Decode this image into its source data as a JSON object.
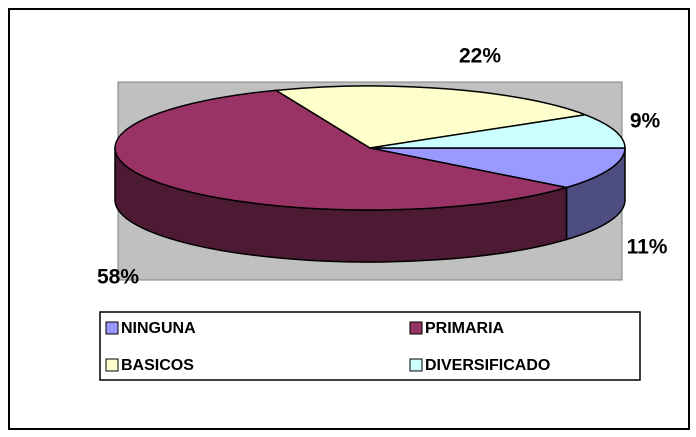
{
  "chart_data": {
    "type": "pie",
    "categories": [
      "NINGUNA",
      "PRIMARIA",
      "BASICOS",
      "DIVERSIFICADO"
    ],
    "values": [
      11,
      58,
      22,
      9
    ],
    "value_labels": [
      "11%",
      "58%",
      "22%",
      "9%"
    ],
    "colors": [
      "#9999ff",
      "#993366",
      "#ffffcc",
      "#ccffff"
    ],
    "legend": "bottom"
  }
}
